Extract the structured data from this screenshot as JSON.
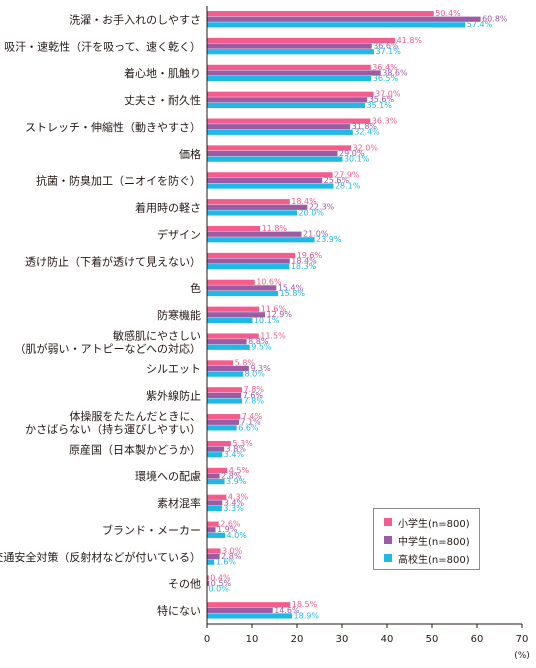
{
  "chart_data": {
    "type": "bar",
    "orientation": "horizontal",
    "categories": [
      "洗濯・お手入れのしやすさ",
      "吸汗・速乾性（汗を吸って、速く乾く）",
      "着心地・肌触り",
      "丈夫さ・耐久性",
      "ストレッチ・伸縮性（動きやすさ）",
      "価格",
      "抗菌・防臭加工（ニオイを防ぐ）",
      "着用時の軽さ",
      "デザイン",
      "透け防止（下着が透けて見えない）",
      "色",
      "防寒機能",
      "敏感肌にやさしい\n（肌が弱い・アトピーなどへの対応）",
      "シルエット",
      "紫外線防止",
      "体操服をたたんだときに、\nかさばらない（持ち運びしやすい）",
      "原産国（日本製かどうか）",
      "環境への配慮",
      "素材混率",
      "ブランド・メーカー",
      "交通安全対策（反射材などが付いている）",
      "その他",
      "特にない"
    ],
    "series": [
      {
        "name": "小学生(n=800)",
        "color": "#f35c8c",
        "values": [
          50.4,
          41.8,
          36.4,
          37.0,
          36.3,
          32.0,
          27.9,
          18.4,
          11.8,
          19.6,
          10.6,
          11.6,
          11.5,
          5.8,
          7.8,
          7.4,
          5.3,
          4.5,
          4.3,
          2.6,
          3.0,
          0.4,
          18.5
        ]
      },
      {
        "name": "中学生(n=800)",
        "color": "#9b5ba5",
        "values": [
          60.8,
          36.6,
          38.6,
          35.6,
          31.8,
          29.0,
          25.6,
          22.3,
          21.0,
          18.4,
          15.4,
          12.9,
          8.8,
          9.3,
          7.6,
          7.1,
          3.8,
          2.8,
          3.4,
          1.9,
          2.8,
          0.5,
          14.6
        ]
      },
      {
        "name": "高校生(n=800)",
        "color": "#1fb9e6",
        "values": [
          57.4,
          37.1,
          36.5,
          35.1,
          32.4,
          30.1,
          28.1,
          20.0,
          23.9,
          18.3,
          15.8,
          10.1,
          9.5,
          8.0,
          7.8,
          6.6,
          3.4,
          3.9,
          3.3,
          4.0,
          1.6,
          0.0,
          18.9
        ]
      }
    ],
    "xlim": [
      0,
      70
    ],
    "xticks": [
      "0",
      "10",
      "20",
      "30",
      "40",
      "50",
      "60",
      "70"
    ],
    "xunit": "(%)",
    "grid": false,
    "legend_position": "bottom-right"
  }
}
